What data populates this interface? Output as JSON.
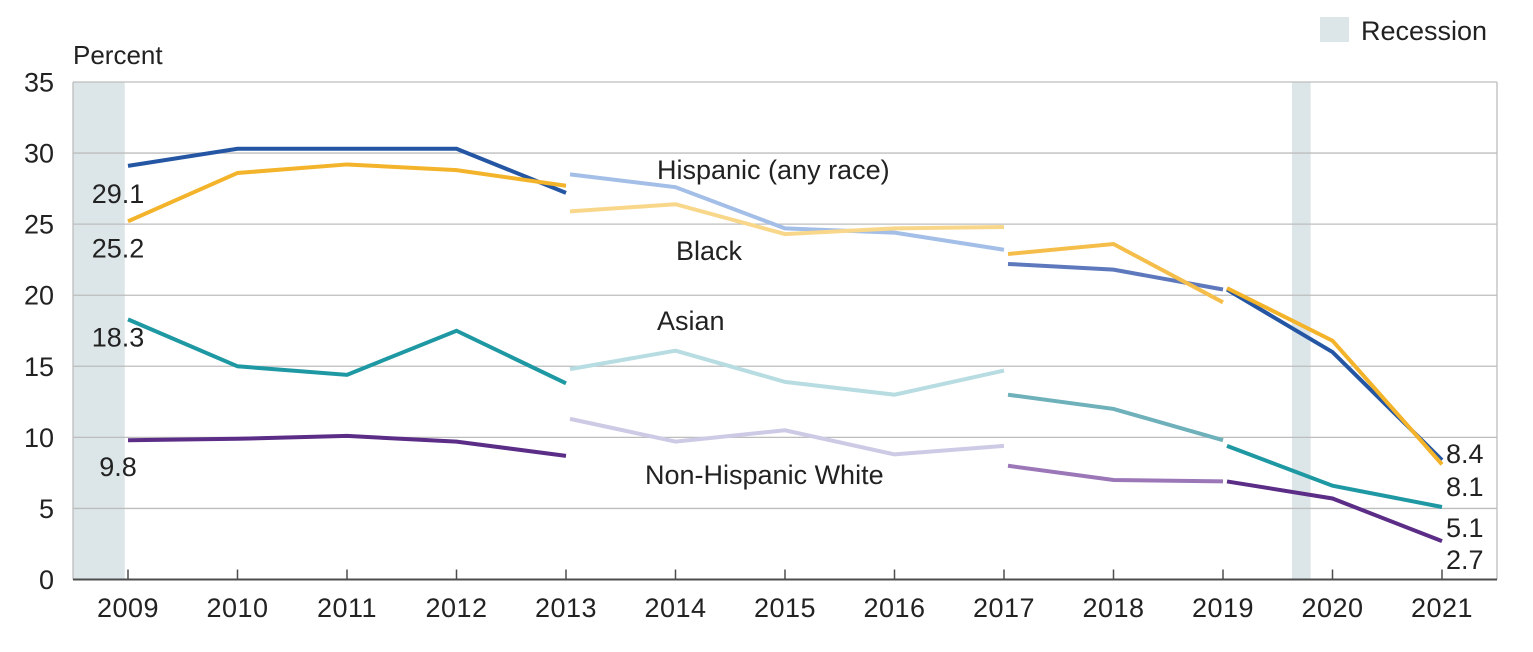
{
  "figure": {
    "y_axis_title": "Percent",
    "legend": {
      "label": "Recession",
      "swatch_color": "#DCE5E7"
    },
    "x_ticks": [
      "2009",
      "2010",
      "2011",
      "2012",
      "2013",
      "2014",
      "2015",
      "2016",
      "2017",
      "2018",
      "2019",
      "2020",
      "2021"
    ],
    "y_ticks": [
      "0",
      "5",
      "10",
      "15",
      "20",
      "25",
      "30",
      "35"
    ]
  },
  "chart_data": {
    "type": "line",
    "title": "",
    "xlabel": "",
    "ylabel": "Percent",
    "ylim": [
      0,
      35
    ],
    "ytick_step": 5,
    "grid": true,
    "legend_position": "top-right",
    "x": [
      2009,
      2010,
      2011,
      2012,
      2013,
      2014,
      2015,
      2016,
      2017,
      2018,
      2019,
      2020,
      2021
    ],
    "recession_bands_years": [
      [
        2008.5,
        2008.97
      ],
      [
        2019.63,
        2019.8
      ]
    ],
    "series": [
      {
        "key": "hispanic",
        "name": "Hispanic (any race)",
        "first_value_label": "29.1",
        "last_value_label": "8.4",
        "colors": {
          "dark": "#2456A3",
          "light": "#A3BEE7",
          "medium": "#5D78BC"
        },
        "segments": [
          {
            "shade": "dark",
            "years": [
              2009,
              2010,
              2011,
              2012,
              2013
            ],
            "values": [
              29.1,
              30.3,
              30.3,
              30.3,
              27.2
            ]
          },
          {
            "shade": "light",
            "years": [
              2013,
              2014,
              2015,
              2016,
              2017
            ],
            "values": [
              28.5,
              27.6,
              24.7,
              24.4,
              23.2
            ]
          },
          {
            "shade": "medium",
            "years": [
              2017,
              2018,
              2019
            ],
            "values": [
              22.2,
              21.8,
              20.4
            ]
          },
          {
            "shade": "dark",
            "years": [
              2019,
              2020,
              2021
            ],
            "values": [
              20.4,
              16.0,
              8.4
            ]
          }
        ]
      },
      {
        "key": "black",
        "name": "Black",
        "first_value_label": "25.2",
        "last_value_label": "8.1",
        "colors": {
          "dark": "#F3B32A",
          "light": "#F8D78A",
          "medium": "#F5BE4B"
        },
        "segments": [
          {
            "shade": "dark",
            "years": [
              2009,
              2010,
              2011,
              2012,
              2013
            ],
            "values": [
              25.2,
              28.6,
              29.2,
              28.8,
              27.7
            ]
          },
          {
            "shade": "light",
            "years": [
              2013,
              2014,
              2015,
              2016,
              2017
            ],
            "values": [
              25.9,
              26.4,
              24.3,
              24.7,
              24.8
            ]
          },
          {
            "shade": "medium",
            "years": [
              2017,
              2018,
              2019
            ],
            "values": [
              22.9,
              23.6,
              19.5
            ]
          },
          {
            "shade": "dark",
            "years": [
              2019,
              2020,
              2021
            ],
            "values": [
              20.5,
              16.8,
              8.1
            ]
          }
        ]
      },
      {
        "key": "asian",
        "name": "Asian",
        "first_value_label": "18.3",
        "last_value_label": "5.1",
        "colors": {
          "dark": "#1E98A2",
          "light": "#B7DCE1",
          "medium": "#6FB1BB"
        },
        "segments": [
          {
            "shade": "dark",
            "years": [
              2009,
              2010,
              2011,
              2012,
              2013
            ],
            "values": [
              18.3,
              15.0,
              14.4,
              17.5,
              13.8
            ]
          },
          {
            "shade": "light",
            "years": [
              2013,
              2014,
              2015,
              2016,
              2017
            ],
            "values": [
              14.8,
              16.1,
              13.9,
              13.0,
              14.7
            ]
          },
          {
            "shade": "medium",
            "years": [
              2017,
              2018,
              2019
            ],
            "values": [
              13.0,
              12.0,
              9.8
            ]
          },
          {
            "shade": "dark",
            "years": [
              2019,
              2020,
              2021
            ],
            "values": [
              9.4,
              6.6,
              5.1
            ]
          }
        ]
      },
      {
        "key": "non-hispanic-white",
        "name": "Non-Hispanic White",
        "first_value_label": "9.8",
        "last_value_label": "2.7",
        "colors": {
          "dark": "#5B2D87",
          "light": "#CCCAE5",
          "medium": "#9B77B8"
        },
        "segments": [
          {
            "shade": "dark",
            "years": [
              2009,
              2010,
              2011,
              2012,
              2013
            ],
            "values": [
              9.8,
              9.9,
              10.1,
              9.7,
              8.7
            ]
          },
          {
            "shade": "light",
            "years": [
              2013,
              2014,
              2015,
              2016,
              2017
            ],
            "values": [
              11.3,
              9.7,
              10.5,
              8.8,
              9.4
            ]
          },
          {
            "shade": "medium",
            "years": [
              2017,
              2018,
              2019
            ],
            "values": [
              8.0,
              7.0,
              6.9
            ]
          },
          {
            "shade": "dark",
            "years": [
              2019,
              2020,
              2021
            ],
            "values": [
              6.9,
              5.7,
              2.7
            ]
          }
        ]
      }
    ]
  }
}
